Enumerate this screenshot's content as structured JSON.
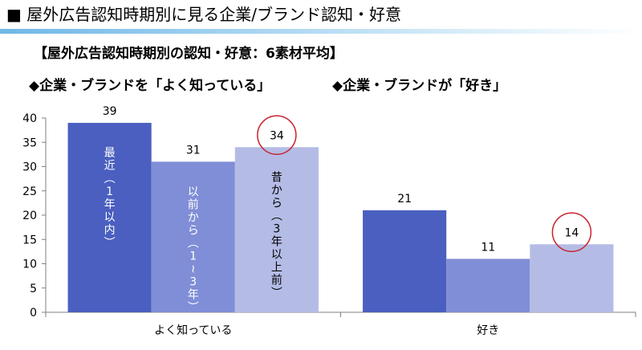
{
  "page_title": "■ 屋外広告認知時期別に見る企業/ブランド認知・好意",
  "chart_data": {
    "type": "bar",
    "title": "【屋外広告認知時期別の認知・好意：6素材平均】",
    "group_headings": [
      "◆企業・ブランドを「よく知っている」",
      "◆企業・ブランドが「好き」"
    ],
    "categories": [
      "よく知っている",
      "好き"
    ],
    "series": [
      {
        "name": "最近（1年以内）",
        "values": [
          39,
          21
        ],
        "color": "#4a5fbf"
      },
      {
        "name": "以前から（1～3年）",
        "values": [
          31,
          11
        ],
        "color": "#7f8ed6"
      },
      {
        "name": "昔から（3年以上前）",
        "values": [
          34,
          14
        ],
        "color": "#b4bce6"
      }
    ],
    "bar_texts": [
      "最近（1年以内）",
      "以前から（1～3年）",
      "昔から（3年以上前）"
    ],
    "highlighted": [
      {
        "category": 0,
        "series": 2
      },
      {
        "category": 1,
        "series": 2
      }
    ],
    "highlight_color": "#c8232c",
    "ylim": [
      0,
      40
    ],
    "yticks": [
      0,
      5,
      10,
      15,
      20,
      25,
      30,
      35,
      40
    ],
    "xlabel": "",
    "ylabel": "",
    "grid": false,
    "legend": "none"
  }
}
